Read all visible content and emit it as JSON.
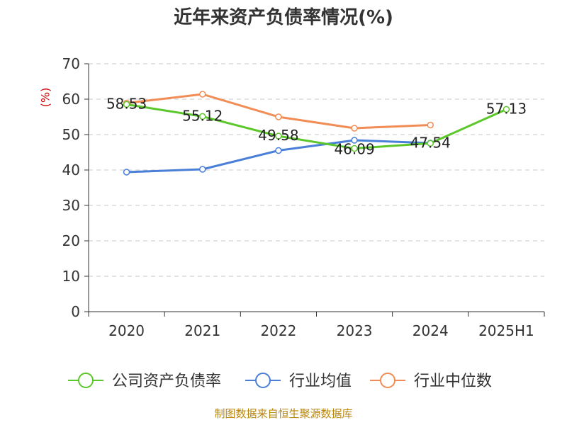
{
  "chart_data": {
    "type": "line",
    "title": "近年来资产负债率情况(%)",
    "ylabel": "(%)",
    "categories": [
      "2020",
      "2021",
      "2022",
      "2023",
      "2024",
      "2025H1"
    ],
    "ylim": [
      0,
      70
    ],
    "yticks": [
      0,
      10,
      20,
      30,
      40,
      50,
      60,
      70
    ],
    "grid": true,
    "legend_position": "bottom",
    "series": [
      {
        "name": "公司资产负债率",
        "color": "#5cc72a",
        "values": [
          58.53,
          55.12,
          49.58,
          46.09,
          47.54,
          57.13
        ],
        "labels": [
          "58.53",
          "55.12",
          "49.58",
          "46.09",
          "47.54",
          "57.13"
        ]
      },
      {
        "name": "行业均值",
        "color": "#4a7fd8",
        "values": [
          39.4,
          40.2,
          45.5,
          48.4,
          47.6,
          null
        ]
      },
      {
        "name": "行业中位数",
        "color": "#f28c55",
        "values": [
          58.9,
          61.4,
          55.0,
          51.8,
          52.7,
          null
        ]
      }
    ]
  },
  "source": "制图数据来自恒生聚源数据库"
}
